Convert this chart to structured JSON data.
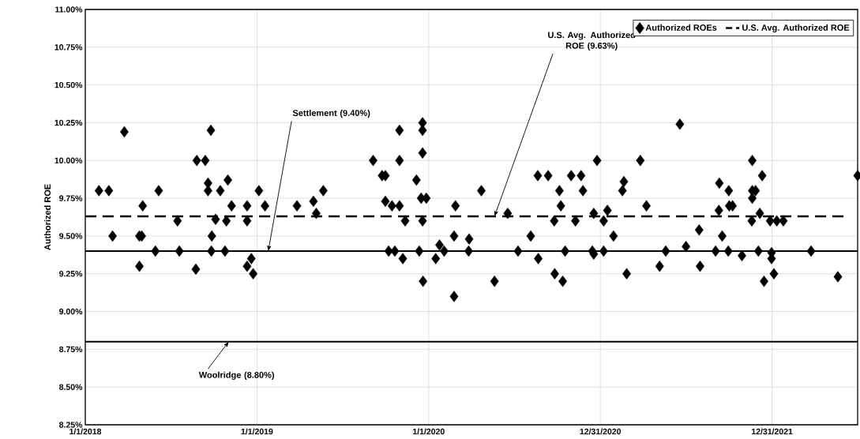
{
  "chart_data": {
    "type": "scatter",
    "ylabel": "Authorized ROE",
    "xlim": [
      "2018-01-01",
      "2022-07-01"
    ],
    "xticks": [
      {
        "value": "2018-01-01",
        "label": "1/1/2018"
      },
      {
        "value": "2019-01-01",
        "label": "1/1/2019"
      },
      {
        "value": "2020-01-01",
        "label": "1/1/2020"
      },
      {
        "value": "2020-12-31",
        "label": "12/31/2020"
      },
      {
        "value": "2021-12-31",
        "label": "12/31/2021"
      }
    ],
    "ylim": [
      8.25,
      11.0
    ],
    "yticks": [
      {
        "value": 8.25,
        "label": "8.25%"
      },
      {
        "value": 8.5,
        "label": "8.50%"
      },
      {
        "value": 8.75,
        "label": "8.75%"
      },
      {
        "value": 9.0,
        "label": "9.00%"
      },
      {
        "value": 9.25,
        "label": "9.25%"
      },
      {
        "value": 9.5,
        "label": "9.50%"
      },
      {
        "value": 9.75,
        "label": "9.75%"
      },
      {
        "value": 10.0,
        "label": "10.00%"
      },
      {
        "value": 10.25,
        "label": "10.25%"
      },
      {
        "value": 10.5,
        "label": "10.50%"
      },
      {
        "value": 10.75,
        "label": "10.75%"
      },
      {
        "value": 11.0,
        "label": "11.00%"
      }
    ],
    "grid": true,
    "legend": "top right",
    "series": [
      {
        "name": "Authorized ROEs",
        "marker": "diamond",
        "color": "#000000",
        "x": [
          "2018-01-30",
          "2018-02-20",
          "2018-02-28",
          "2018-03-25",
          "2018-04-26",
          "2018-04-26",
          "2018-05-01",
          "2018-05-03",
          "2018-05-30",
          "2018-06-06",
          "2018-07-16",
          "2018-07-20",
          "2018-08-24",
          "2018-08-26",
          "2018-09-13",
          "2018-09-19",
          "2018-09-19",
          "2018-09-25",
          "2018-09-26",
          "2018-09-27",
          "2018-10-05",
          "2018-10-15",
          "2018-10-25",
          "2018-10-28",
          "2018-10-31",
          "2018-11-08",
          "2018-12-11",
          "2018-12-11",
          "2018-12-11",
          "2018-12-20",
          "2018-12-24",
          "2019-01-05",
          "2019-01-18",
          "2019-03-27",
          "2019-05-01",
          "2019-05-07",
          "2019-05-22",
          "2019-09-05",
          "2019-09-24",
          "2019-10-01",
          "2019-10-01",
          "2019-10-08",
          "2019-10-15",
          "2019-10-21",
          "2019-10-31",
          "2019-10-31",
          "2019-10-31",
          "2019-11-07",
          "2019-11-12",
          "2019-12-06",
          "2019-12-12",
          "2019-12-16",
          "2019-12-19",
          "2019-12-19",
          "2019-12-19",
          "2019-12-19",
          "2019-12-20",
          "2019-12-27",
          "2020-01-16",
          "2020-01-24",
          "2020-02-03",
          "2020-02-24",
          "2020-02-24",
          "2020-02-27",
          "2020-03-26",
          "2020-03-27",
          "2020-04-22",
          "2020-05-20",
          "2020-06-17",
          "2020-07-09",
          "2020-08-05",
          "2020-08-20",
          "2020-08-21",
          "2020-09-11",
          "2020-09-24",
          "2020-09-25",
          "2020-10-05",
          "2020-10-08",
          "2020-10-12",
          "2020-10-17",
          "2020-10-30",
          "2020-11-08",
          "2020-11-20",
          "2020-11-24",
          "2020-12-14",
          "2020-12-17",
          "2020-12-17",
          "2020-12-24",
          "2021-01-07",
          "2021-01-07",
          "2021-01-15",
          "2021-01-28",
          "2021-02-16",
          "2021-02-19",
          "2021-02-25",
          "2021-03-26",
          "2021-04-08",
          "2021-05-06",
          "2021-05-19",
          "2021-06-18",
          "2021-07-01",
          "2021-07-29",
          "2021-07-31",
          "2021-09-02",
          "2021-09-09",
          "2021-09-10",
          "2021-09-16",
          "2021-09-29",
          "2021-09-30",
          "2021-10-01",
          "2021-10-08",
          "2021-10-28",
          "2021-11-18",
          "2021-11-19",
          "2021-11-19",
          "2021-11-19",
          "2021-11-26",
          "2021-12-02",
          "2021-12-05",
          "2021-12-10",
          "2021-12-14",
          "2021-12-27",
          "2021-12-30",
          "2021-12-30",
          "2022-01-04",
          "2022-01-10",
          "2022-01-24",
          "2022-03-24",
          "2022-05-20",
          "2022-07-01"
        ],
        "values": [
          9.8,
          9.8,
          9.5,
          10.19,
          9.5,
          9.3,
          9.5,
          9.7,
          9.4,
          9.8,
          9.6,
          9.4,
          9.28,
          10.0,
          10.0,
          9.85,
          9.8,
          10.2,
          9.4,
          9.5,
          9.61,
          9.8,
          9.4,
          9.6,
          9.87,
          9.7,
          9.7,
          9.6,
          9.3,
          9.35,
          9.25,
          9.8,
          9.7,
          9.7,
          9.73,
          9.65,
          9.8,
          10.0,
          9.9,
          9.9,
          9.73,
          9.4,
          9.7,
          9.4,
          9.7,
          10.2,
          10.0,
          9.35,
          9.6,
          9.87,
          9.4,
          9.75,
          10.25,
          10.2,
          10.05,
          9.6,
          9.2,
          9.75,
          9.35,
          9.44,
          9.4,
          9.5,
          9.1,
          9.7,
          9.4,
          9.48,
          9.8,
          9.2,
          9.65,
          9.4,
          9.5,
          9.9,
          9.35,
          9.9,
          9.6,
          9.25,
          9.8,
          9.7,
          9.2,
          9.4,
          9.9,
          9.6,
          9.9,
          9.8,
          9.4,
          9.65,
          9.38,
          10.0,
          9.4,
          9.6,
          9.67,
          9.5,
          9.8,
          9.86,
          9.25,
          10.0,
          9.7,
          9.3,
          9.4,
          10.24,
          9.43,
          9.54,
          9.3,
          9.4,
          9.67,
          9.85,
          9.5,
          9.4,
          9.8,
          9.7,
          9.7,
          9.37,
          9.6,
          10.0,
          9.8,
          9.75,
          9.8,
          9.4,
          9.65,
          9.9,
          9.2,
          9.6,
          9.39,
          9.35,
          9.25,
          9.6,
          9.6,
          9.4,
          9.23,
          9.9
        ]
      },
      {
        "name": "U.S. Avg. Authorized ROE",
        "type": "line",
        "line_style": "dashed",
        "marker": "none",
        "color": "#000000",
        "x": [
          "2018-01-01",
          "2022-06-06"
        ],
        "values": [
          9.63,
          9.63
        ]
      }
    ],
    "ref_lines": [
      {
        "axis": "y",
        "value": 9.4,
        "color": "#000000",
        "line_style": "solid"
      },
      {
        "axis": "y",
        "value": 8.8,
        "color": "#000000",
        "line_style": "solid"
      }
    ],
    "annotations": [
      {
        "text": "Settlement (9.40%)",
        "x": "2019-01-25",
        "y": 9.4
      },
      {
        "text": "U.S. Avg. Authorized ROE (9.63%)",
        "x": "2020-05-20",
        "y": 9.63
      },
      {
        "text": "Woolridge (8.80%)",
        "x": "2018-11-02",
        "y": 8.8
      }
    ]
  }
}
